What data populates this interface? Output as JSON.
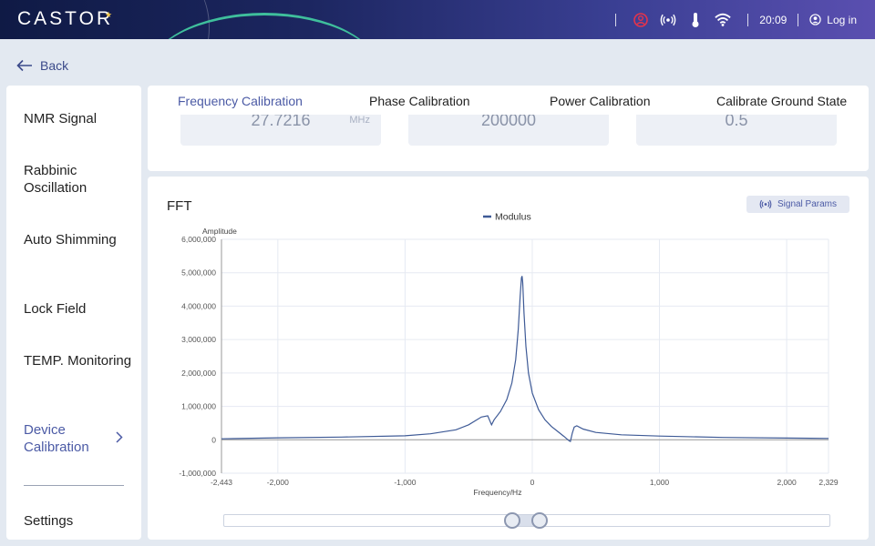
{
  "header": {
    "logo": "CASTOR",
    "time": "20:09",
    "login_label": "Log in",
    "icons": [
      "user-alert-icon",
      "broadcast-icon",
      "thermometer-icon",
      "wifi-icon",
      "user-icon"
    ]
  },
  "back_label": "Back",
  "sidebar": {
    "items": [
      {
        "label": "NMR Signal"
      },
      {
        "label": "Rabbinic Oscillation"
      },
      {
        "label": "Auto Shimming"
      },
      {
        "label": "Lock Field"
      },
      {
        "label": "TEMP. Monitoring"
      },
      {
        "label": "Device Calibration"
      },
      {
        "label": "Settings"
      }
    ],
    "active": "Device Calibration"
  },
  "tabs": [
    {
      "label": "Frequency Calibration"
    },
    {
      "label": "Phase Calibration"
    },
    {
      "label": "Power Calibration"
    },
    {
      "label": "Calibrate Ground State"
    }
  ],
  "active_tab": "Frequency Calibration",
  "params": [
    {
      "value": "27.7216",
      "unit": "MHz"
    },
    {
      "value": "200000",
      "unit": ""
    },
    {
      "value": "0.5",
      "unit": ""
    }
  ],
  "fft": {
    "title": "FFT",
    "signal_params_label": "Signal Params"
  },
  "chart_data": {
    "type": "line",
    "xlabel": "Frequency/Hz",
    "ylabel": "Amplitude",
    "legend": "Modulus",
    "legend_position": "top-center",
    "xlim": [
      -2443,
      2329
    ],
    "ylim": [
      -1000000,
      6000000
    ],
    "x_ticks": [
      "-2,443",
      "-2,000",
      "-1,000",
      "0",
      "1,000",
      "2,000",
      "2,329"
    ],
    "y_ticks": [
      "6,000,000",
      "5,000,000",
      "4,000,000",
      "3,000,000",
      "2,000,000",
      "1,000,000",
      "0",
      "-1,000,000"
    ],
    "series": [
      {
        "name": "Modulus",
        "color": "#3e5a96",
        "x": [
          -2443,
          -2000,
          -1500,
          -1000,
          -800,
          -600,
          -500,
          -400,
          -350,
          -320,
          -300,
          -250,
          -200,
          -160,
          -130,
          -110,
          -95,
          -85,
          -80,
          -75,
          -65,
          -50,
          -30,
          0,
          50,
          100,
          150,
          200,
          250,
          290,
          300,
          315,
          330,
          350,
          400,
          500,
          700,
          1000,
          1500,
          2000,
          2329
        ],
        "y": [
          30000,
          60000,
          80000,
          120000,
          180000,
          300000,
          450000,
          680000,
          720000,
          450000,
          600000,
          850000,
          1200000,
          1700000,
          2400000,
          3300000,
          4300000,
          4850000,
          4900000,
          4700000,
          3800000,
          2800000,
          2000000,
          1400000,
          900000,
          600000,
          400000,
          250000,
          100000,
          -30000,
          -50000,
          200000,
          380000,
          420000,
          320000,
          220000,
          150000,
          110000,
          70000,
          50000,
          40000
        ]
      }
    ]
  },
  "slider": {
    "range_start_fraction": 0.476,
    "range_end_fraction": 0.521
  }
}
